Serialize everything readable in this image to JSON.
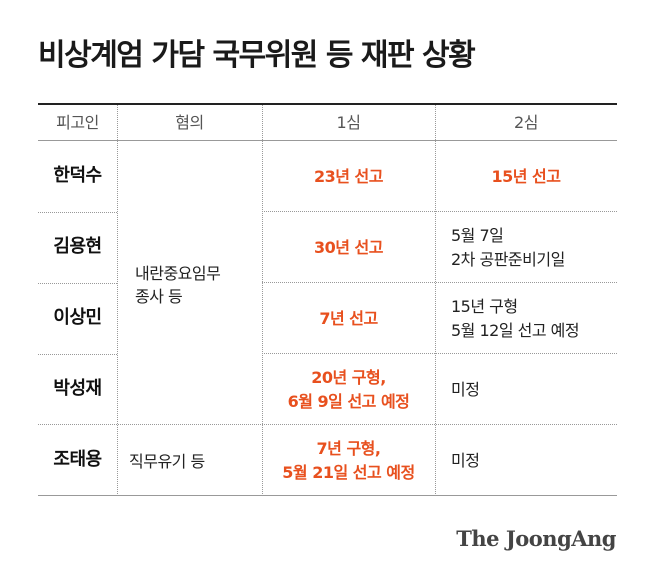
{
  "title": "비상계엄 가담 국무위원 등 재판 상황",
  "header": {
    "defendant": "피고인",
    "charge": "혐의",
    "first_trial": "1심",
    "second_trial": "2심"
  },
  "charge_groups": {
    "insurrection": {
      "line1": "내란중요임무",
      "line2": "종사 등"
    },
    "abuse": "직무유기 등"
  },
  "rows": [
    {
      "defendant": "한덕수",
      "first": {
        "line1": "23년 선고",
        "line2": ""
      },
      "second": {
        "line1": "15년 선고",
        "line2": ""
      }
    },
    {
      "defendant": "김용현",
      "first": {
        "line1": "30년 선고",
        "line2": ""
      },
      "second": {
        "line1": "5월 7일",
        "line2": "2차 공판준비기일"
      }
    },
    {
      "defendant": "이상민",
      "first": {
        "line1": "7년 선고",
        "line2": ""
      },
      "second": {
        "line1": "15년 구형",
        "line2": "5월 12일 선고 예정"
      }
    },
    {
      "defendant": "박성재",
      "first": {
        "line1": "20년 구형,",
        "line2": "6월 9일 선고 예정"
      },
      "second": {
        "line1": "미정",
        "line2": ""
      }
    },
    {
      "defendant": "조태용",
      "first": {
        "line1": "7년 구형,",
        "line2": "5월 21일 선고 예정"
      },
      "second": {
        "line1": "미정",
        "line2": ""
      }
    }
  ],
  "logo": "The JoongAng",
  "colors": {
    "highlight": "#e8501e",
    "text": "#222222",
    "rule": "#999999"
  }
}
